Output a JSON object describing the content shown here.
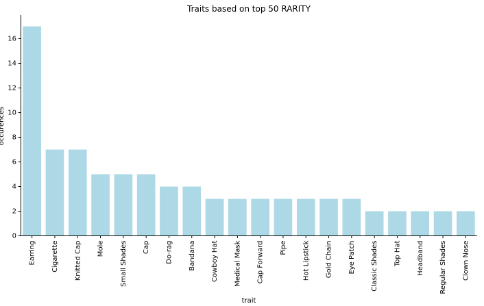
{
  "chart_data": {
    "type": "bar",
    "title": "Traits based on top 50 RARITY",
    "xlabel": "trait",
    "ylabel": "occurences",
    "categories": [
      "Earring",
      "Cigarette",
      "Knitted Cap",
      "Mole",
      "Small Shades",
      "Cap",
      "Do-rag",
      "Bandana",
      "Cowboy Hat",
      "Medical Mask",
      "Cap Forward",
      "Pipe",
      "Hot Lipstick",
      "Gold Chain",
      "Eye Patch",
      "Classic Shades",
      "Top Hat",
      "Headband",
      "Regular Shades",
      "Clown Nose"
    ],
    "values": [
      17,
      7,
      7,
      5,
      5,
      5,
      4,
      4,
      3,
      3,
      3,
      3,
      3,
      3,
      3,
      2,
      2,
      2,
      2,
      2
    ],
    "yticks": [
      0,
      2,
      4,
      6,
      8,
      10,
      12,
      14,
      16
    ],
    "ylim": [
      0,
      17.85
    ],
    "bar_color": "#add8e6",
    "grid": false,
    "legend": "none"
  }
}
